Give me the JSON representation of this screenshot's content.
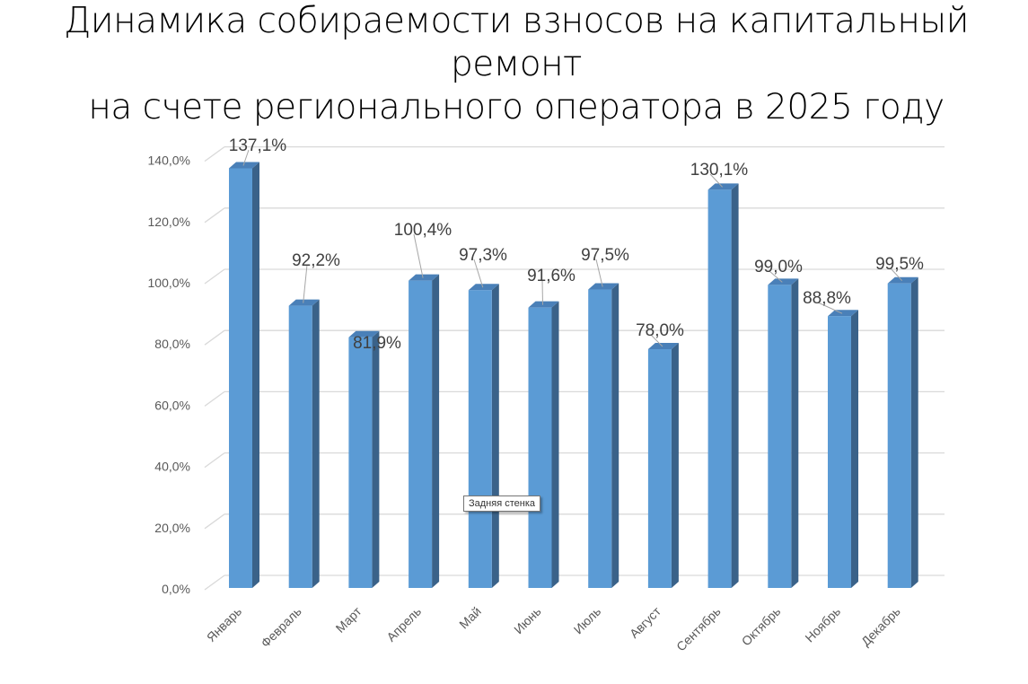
{
  "chart_data": {
    "type": "bar",
    "title": "Динамика собираемости взносов на капитальный ремонт на счете регионального оператора в 2025 году",
    "title_lines": [
      "Динамика собираемости взносов на капитальный ремонт",
      "на счете регионального оператора в 2025 году"
    ],
    "categories": [
      "Январь",
      "Февраль",
      "Март",
      "Апрель",
      "Май",
      "Июнь",
      "Июль",
      "Август",
      "Сентябрь",
      "Октябрь",
      "Ноябрь",
      "Декабрь"
    ],
    "values": [
      137.1,
      92.2,
      81.9,
      100.4,
      97.3,
      91.6,
      97.5,
      78.0,
      130.1,
      99.0,
      88.8,
      99.5
    ],
    "data_labels": [
      "137,1%",
      "92,2%",
      "81,9%",
      "100,4%",
      "97,3%",
      "91,6%",
      "97,5%",
      "78,0%",
      "130,1%",
      "99,0%",
      "88,8%",
      "99,5%"
    ],
    "yticks": [
      "0,0%",
      "20,0%",
      "40,0%",
      "60,0%",
      "80,0%",
      "100,0%",
      "120,0%",
      "140,0%"
    ],
    "ylim": [
      0,
      140
    ],
    "xlabel": "",
    "ylabel": "",
    "grid": true,
    "legend": "none",
    "colors": {
      "front": "#5b9bd5",
      "side": "#3a6289",
      "top": "#4a80b8",
      "grid": "#d9d9d9"
    }
  },
  "tooltip": "Задняя стенка"
}
